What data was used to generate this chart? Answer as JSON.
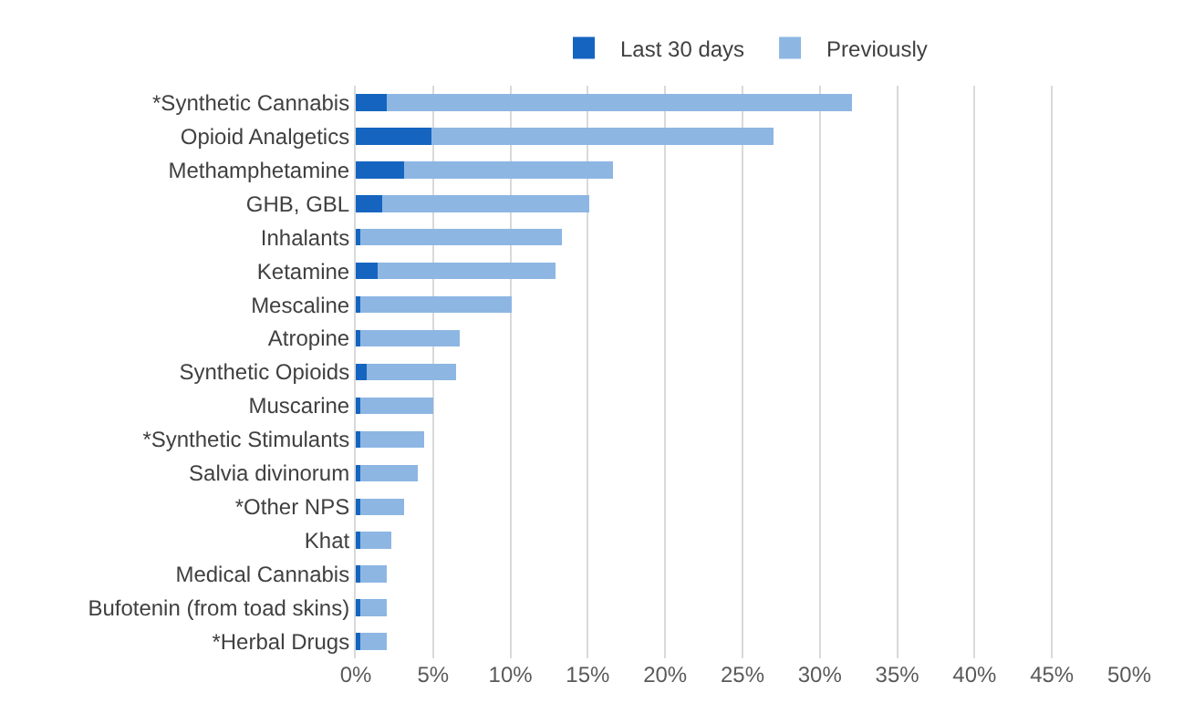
{
  "chart_data": {
    "type": "bar",
    "orientation": "horizontal",
    "stacked": true,
    "categories": [
      "*Synthetic Cannabis",
      "Opioid Analgetics",
      "Methamphetamine",
      "GHB, GBL",
      "Inhalants",
      "Ketamine",
      "Mescaline",
      "Atropine",
      "Synthetic Opioids",
      "Muscarine",
      "*Synthetic Stimulants",
      "Salvia divinorum",
      "*Other NPS",
      "Khat",
      "Medical Cannabis",
      "Bufotenin (from toad skins)",
      "*Herbal Drugs"
    ],
    "series": [
      {
        "name": "Last 30 days",
        "color": "#1565c0",
        "values": [
          2.0,
          4.9,
          3.1,
          1.7,
          0.3,
          1.4,
          0.3,
          0.3,
          0.7,
          0.3,
          0.3,
          0.3,
          0.3,
          0.3,
          0.3,
          0.3,
          0.3
        ]
      },
      {
        "name": "Previously",
        "color": "#8db6e3",
        "values": [
          30.1,
          22.1,
          13.5,
          13.4,
          13.0,
          11.5,
          9.8,
          6.4,
          5.8,
          4.7,
          4.1,
          3.7,
          2.8,
          2.0,
          1.7,
          1.7,
          1.7
        ]
      }
    ],
    "xlim": [
      0,
      50
    ],
    "xticks": [
      {
        "value": 0,
        "label": "0%"
      },
      {
        "value": 5,
        "label": "5%"
      },
      {
        "value": 10,
        "label": "10%"
      },
      {
        "value": 15,
        "label": "15%"
      },
      {
        "value": 20,
        "label": "20%"
      },
      {
        "value": 25,
        "label": "25%"
      },
      {
        "value": 30,
        "label": "30%"
      },
      {
        "value": 35,
        "label": "35%"
      },
      {
        "value": 40,
        "label": "40%"
      },
      {
        "value": 45,
        "label": "45%"
      },
      {
        "value": 50,
        "label": "50%"
      }
    ],
    "grid": "x",
    "legend": "top"
  }
}
